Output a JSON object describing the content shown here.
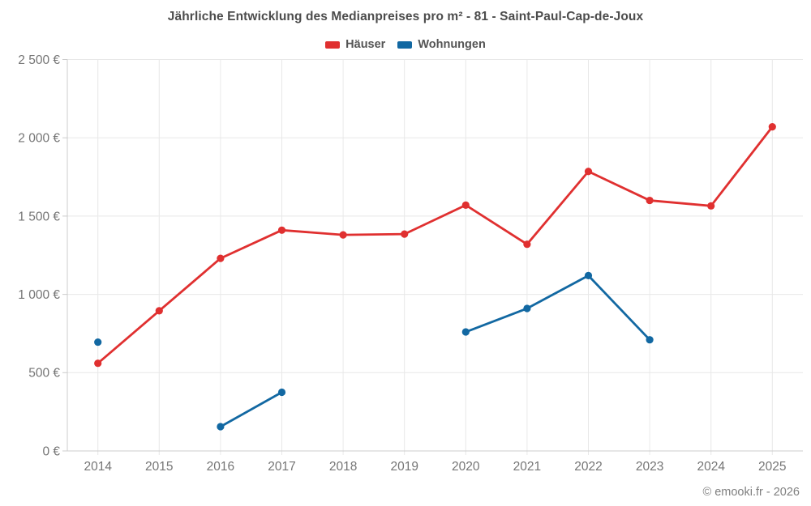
{
  "footer": {
    "credit": "© emooki.fr - 2026"
  },
  "chart_data": {
    "type": "line",
    "title": "Jährliche Entwicklung des Medianpreises pro m² - 81 - Saint-Paul-Cap-de-Joux",
    "categories": [
      "2014",
      "2015",
      "2016",
      "2017",
      "2018",
      "2019",
      "2020",
      "2021",
      "2022",
      "2023",
      "2024",
      "2025"
    ],
    "series": [
      {
        "name": "Häuser",
        "color": "#e03030",
        "values": [
          560,
          895,
          1230,
          1410,
          1380,
          1385,
          1570,
          1320,
          1785,
          1600,
          1565,
          2070
        ]
      },
      {
        "name": "Wohnungen",
        "color": "#1268a2",
        "values": [
          695,
          null,
          155,
          375,
          null,
          null,
          760,
          910,
          1120,
          710,
          null,
          null
        ]
      }
    ],
    "xlabel": "",
    "ylabel": "",
    "ylim": [
      0,
      2500
    ],
    "y_tick_step": 500,
    "y_tick_labels": [
      "0 €",
      "500 €",
      "1 000 €",
      "1 500 €",
      "2 000 €",
      "2 500 €"
    ],
    "grid": true,
    "legend_position": "top",
    "colors": {
      "title_text": "#4c4c4c",
      "axis_label_text": "#757575",
      "grid_line": "#e8e8e8",
      "axis_line": "#cccccc",
      "credit_text": "#808080"
    }
  }
}
